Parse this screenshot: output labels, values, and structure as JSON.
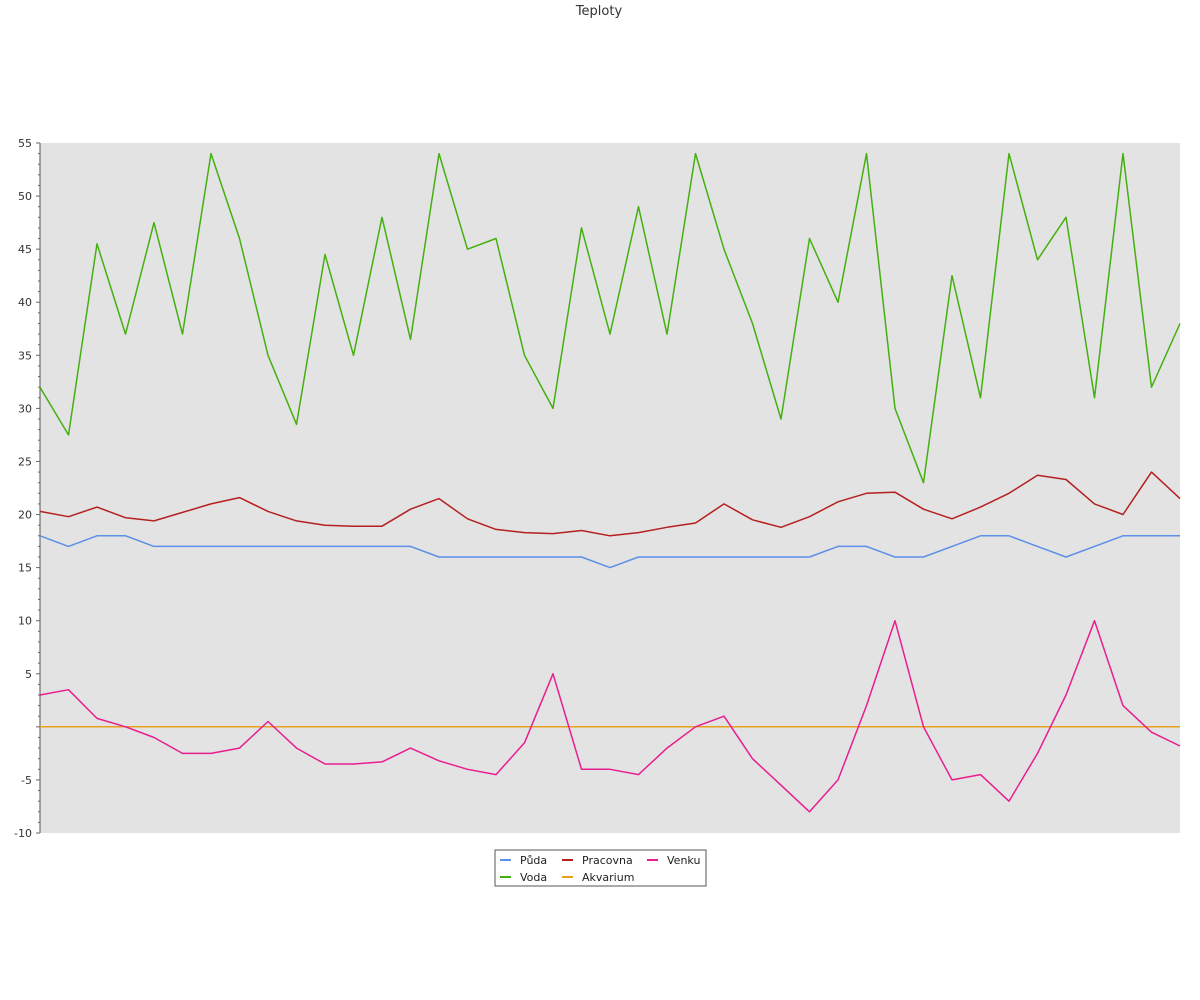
{
  "chart_data": {
    "type": "line",
    "title": "Teploty",
    "xlabel": "",
    "ylabel": "",
    "ylim": [
      -10,
      55
    ],
    "yticks": [
      55,
      50,
      45,
      40,
      35,
      30,
      25,
      20,
      15,
      10,
      5,
      -5,
      -10
    ],
    "grid": false,
    "legend": "bottom-center",
    "x": [
      0,
      10,
      20,
      30,
      40,
      50,
      60,
      70,
      80,
      90,
      100,
      110,
      120,
      130,
      140,
      150,
      160,
      170,
      180,
      190,
      200,
      210,
      220,
      230,
      240,
      250,
      260,
      270,
      280,
      290,
      300,
      310,
      320,
      330,
      340,
      350,
      360,
      370,
      380,
      390,
      400
    ],
    "series": [
      {
        "name": "Půda",
        "color": "#5b8fe8",
        "values": [
          18,
          17,
          18,
          18,
          17,
          17,
          17,
          17,
          17,
          17,
          17,
          17,
          17,
          17,
          16,
          16,
          16,
          16,
          16,
          16,
          15,
          16,
          16,
          16,
          16,
          16,
          16,
          16,
          17,
          17,
          16,
          16,
          17,
          18,
          18,
          17,
          16,
          17,
          18,
          18,
          18
        ]
      },
      {
        "name": "Voda",
        "color": "#44b010",
        "values": [
          32,
          27.5,
          45.5,
          37,
          47.5,
          37,
          54,
          46,
          35,
          28.5,
          44.5,
          35,
          48,
          36.5,
          54,
          45,
          46,
          35,
          30,
          47,
          37,
          49,
          37,
          54,
          45,
          38,
          29,
          46,
          40,
          54,
          30,
          23,
          42.5,
          31,
          54,
          44,
          48,
          31,
          54,
          32,
          38
        ]
      },
      {
        "name": "Pracovna",
        "color": "#b52020",
        "values": [
          20.3,
          19.8,
          20.7,
          19.7,
          19.4,
          20.2,
          21.0,
          21.6,
          20.3,
          19.4,
          19.0,
          18.9,
          18.9,
          20.5,
          21.5,
          19.6,
          18.6,
          18.3,
          18.2,
          18.5,
          18.0,
          18.3,
          18.8,
          19.2,
          21.0,
          19.5,
          18.8,
          19.8,
          21.2,
          22.0,
          22.1,
          20.5,
          19.6,
          20.7,
          22.0,
          23.7,
          23.3,
          21.0,
          20.0,
          24.0,
          21.5
        ]
      },
      {
        "name": "Akvarium",
        "color": "#e8a020",
        "values": [
          0,
          0,
          0,
          0,
          0,
          0,
          0,
          0,
          0,
          0,
          0,
          0,
          0,
          0,
          0,
          0,
          0,
          0,
          0,
          0,
          0,
          0,
          0,
          0,
          0,
          0,
          0,
          0,
          0,
          0,
          0,
          0,
          0,
          0,
          0,
          0,
          0,
          0,
          0,
          0,
          0
        ]
      },
      {
        "name": "Venku",
        "color": "#e81e90",
        "values": [
          3,
          3.5,
          0.8,
          0,
          -1,
          -2.5,
          -2.5,
          -2,
          0.5,
          -2,
          -3.5,
          -3.5,
          -3.3,
          -2,
          -3.2,
          -4,
          -4.5,
          -1.5,
          5,
          -4,
          -4,
          -4.5,
          -2,
          0,
          1,
          -3,
          -5.5,
          -8,
          -5,
          2,
          10,
          0,
          -5,
          -4.5,
          -7,
          -2.5,
          3,
          10,
          2,
          -0.5,
          -1.8
        ]
      }
    ]
  }
}
